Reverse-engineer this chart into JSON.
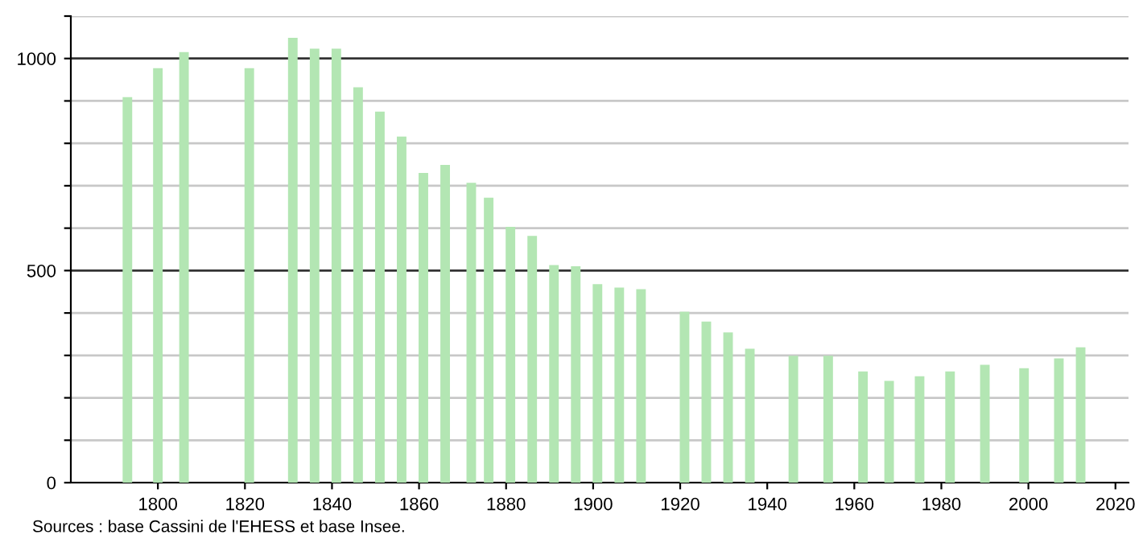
{
  "chart_data": {
    "type": "bar",
    "x": [
      1793,
      1800,
      1806,
      1821,
      1831,
      1836,
      1841,
      1846,
      1851,
      1856,
      1861,
      1866,
      1872,
      1876,
      1881,
      1886,
      1891,
      1896,
      1901,
      1906,
      1911,
      1921,
      1926,
      1931,
      1936,
      1946,
      1954,
      1962,
      1968,
      1975,
      1982,
      1990,
      1999,
      2007,
      2012
    ],
    "values": [
      909,
      977,
      1015,
      977,
      1049,
      1023,
      1023,
      932,
      875,
      816,
      730,
      749,
      707,
      672,
      603,
      582,
      513,
      510,
      468,
      460,
      456,
      403,
      380,
      354,
      316,
      299,
      299,
      262,
      240,
      251,
      262,
      278,
      270,
      293,
      319
    ],
    "color": "#b3e6b3",
    "xlim": [
      1780,
      2023
    ],
    "xticks": [
      1800,
      1820,
      1840,
      1860,
      1880,
      1900,
      1920,
      1940,
      1960,
      1980,
      2000,
      2020
    ],
    "ylim": [
      0,
      1100
    ],
    "yticks": [
      0,
      {
        "value": 100,
        "label": null
      },
      {
        "value": 200,
        "label": null
      },
      {
        "value": 300,
        "label": null
      },
      {
        "value": 400,
        "label": null
      },
      500,
      {
        "value": 600,
        "label": null
      },
      {
        "value": 700,
        "label": null
      },
      {
        "value": 800,
        "label": null
      },
      {
        "value": 900,
        "label": null
      },
      1000,
      {
        "value": 1100,
        "label": null
      }
    ],
    "grid": "y",
    "annotations": [
      "Sources : base Cassini de l'EHESS et base Insee."
    ]
  }
}
